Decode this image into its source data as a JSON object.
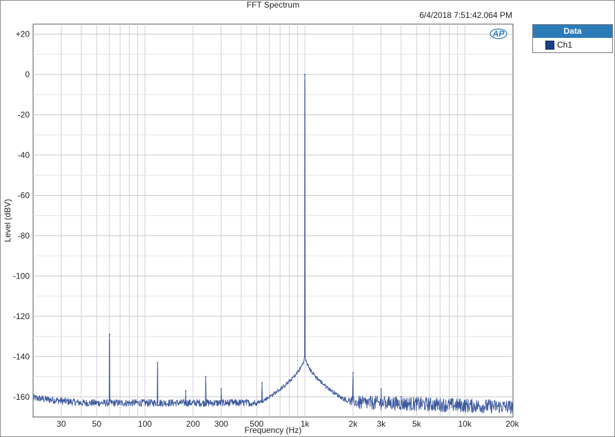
{
  "colors": {
    "trace": "#3f5a9e",
    "legend_header": "#2b7bb9",
    "swatch": "#1b3f8a",
    "grid": "#d0d0d0"
  },
  "icons": {
    "logo": "ap-logo-icon"
  },
  "chart_data": {
    "type": "line",
    "title": "FFT Spectrum",
    "timestamp": "6/4/2018 7:51:42.064 PM",
    "xlabel": "Frequency (Hz)",
    "ylabel": "Level (dBV)",
    "xscale": "log",
    "xlim": [
      20,
      20000
    ],
    "ylim": [
      -170,
      25
    ],
    "grid": true,
    "legend_position": "right",
    "legend_title": "Data",
    "x_ticks": [
      {
        "value": 30,
        "label": "30"
      },
      {
        "value": 50,
        "label": "50"
      },
      {
        "value": 100,
        "label": "100"
      },
      {
        "value": 200,
        "label": "200"
      },
      {
        "value": 300,
        "label": "300"
      },
      {
        "value": 500,
        "label": "500"
      },
      {
        "value": 1000,
        "label": "1k"
      },
      {
        "value": 2000,
        "label": "2k"
      },
      {
        "value": 3000,
        "label": "3k"
      },
      {
        "value": 5000,
        "label": "5k"
      },
      {
        "value": 10000,
        "label": "10k"
      },
      {
        "value": 20000,
        "label": "20k"
      }
    ],
    "y_ticks": [
      {
        "value": 20,
        "label": "+20"
      },
      {
        "value": 0,
        "label": "0"
      },
      {
        "value": -20,
        "label": "-20"
      },
      {
        "value": -40,
        "label": "-40"
      },
      {
        "value": -60,
        "label": "-60"
      },
      {
        "value": -80,
        "label": "-80"
      },
      {
        "value": -100,
        "label": "-100"
      },
      {
        "value": -120,
        "label": "-120"
      },
      {
        "value": -140,
        "label": "-140"
      },
      {
        "value": -160,
        "label": "-160"
      }
    ],
    "series": [
      {
        "name": "Ch1",
        "noise_floor_dbv": -163,
        "peaks": [
          {
            "x": 60,
            "y": -129
          },
          {
            "x": 120,
            "y": -143
          },
          {
            "x": 180,
            "y": -157
          },
          {
            "x": 240,
            "y": -150
          },
          {
            "x": 300,
            "y": -156
          },
          {
            "x": 540,
            "y": -153
          },
          {
            "x": 1000,
            "y": 0
          },
          {
            "x": 2000,
            "y": -148
          },
          {
            "x": 3000,
            "y": -156
          },
          {
            "x": 4000,
            "y": -160
          }
        ]
      }
    ]
  }
}
